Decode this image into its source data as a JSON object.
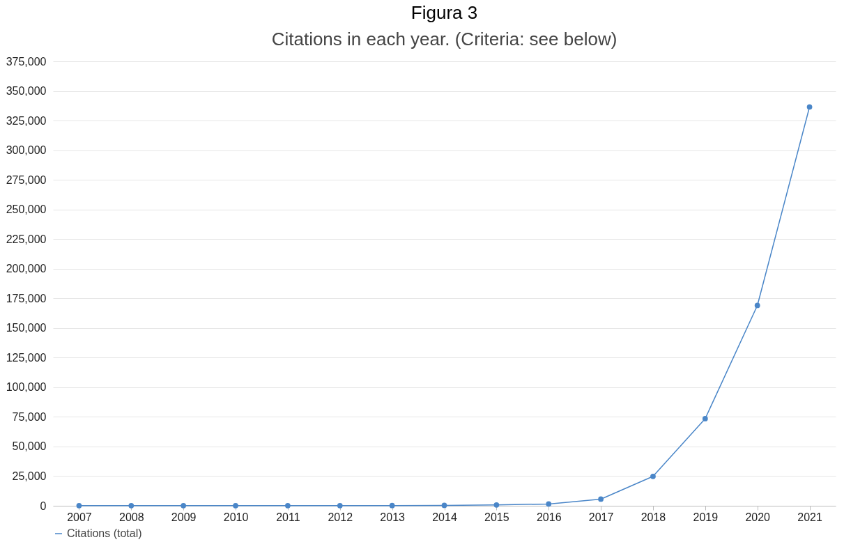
{
  "chart_data": {
    "type": "line",
    "title": "Figura 3",
    "subtitle": "Citations in each year. (Criteria: see below)",
    "categories": [
      "2007",
      "2008",
      "2009",
      "2010",
      "2011",
      "2012",
      "2013",
      "2014",
      "2015",
      "2016",
      "2017",
      "2018",
      "2019",
      "2020",
      "2021"
    ],
    "series": [
      {
        "name": "Citations (total)",
        "color": "#4a86c8",
        "values": [
          100,
          100,
          100,
          100,
          100,
          100,
          200,
          300,
          700,
          1500,
          5600,
          24800,
          73500,
          169000,
          336500
        ]
      }
    ],
    "ylim": [
      0,
      375000
    ],
    "yticks": [
      0,
      {
        "value": 25000,
        "label": "25,000"
      },
      {
        "value": 50000,
        "label": "50,000"
      },
      {
        "value": 75000,
        "label": "75,000"
      },
      {
        "value": 100000,
        "label": "100,000"
      },
      {
        "value": 125000,
        "label": "125,000"
      },
      {
        "value": 150000,
        "label": "150,000"
      },
      {
        "value": 175000,
        "label": "175,000"
      },
      {
        "value": 200000,
        "label": "200,000"
      },
      {
        "value": 225000,
        "label": "225,000"
      },
      {
        "value": 250000,
        "label": "250,000"
      },
      {
        "value": 275000,
        "label": "275,000"
      },
      {
        "value": 300000,
        "label": "300,000"
      },
      {
        "value": 325000,
        "label": "325,000"
      },
      {
        "value": 350000,
        "label": "350,000"
      },
      {
        "value": 375000,
        "label": "375,000"
      }
    ],
    "grid": "y",
    "legend": "bottom left",
    "marker": "circle",
    "line_style": "solid"
  }
}
